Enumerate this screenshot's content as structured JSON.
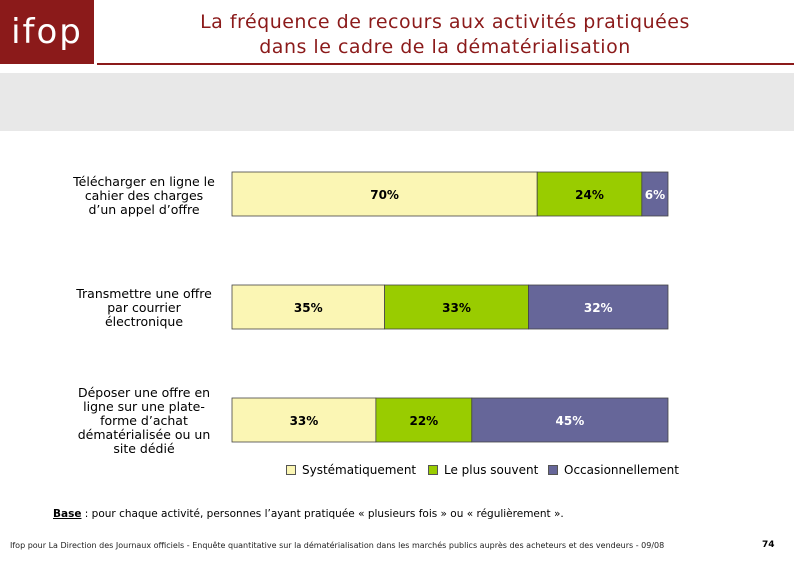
{
  "header": {
    "logo_text": "ifop",
    "title_line1": "La fréquence de recours aux activités pratiquées",
    "title_line2": "dans le cadre de la dématérialisation",
    "brand_color": "#8b1a1a"
  },
  "chart_data": {
    "type": "bar",
    "orientation": "horizontal",
    "stacked": true,
    "percent_stacked": true,
    "categories": [
      "Télécharger en ligne le cahier des charges d’un appel d’offre",
      "Transmettre une offre par courrier électronique",
      "Déposer une offre en ligne sur une plate-forme d’achat dématérialisée ou un site dédié"
    ],
    "category_lines": [
      [
        "Télécharger en ligne le",
        "cahier des charges",
        "d’un appel d’offre"
      ],
      [
        "Transmettre une offre",
        "par courrier",
        "électronique"
      ],
      [
        "Déposer une offre en",
        "ligne sur une plate-",
        "forme d’achat",
        "dématérialisée ou un",
        "site dédié"
      ]
    ],
    "series": [
      {
        "name": "Systématiquement",
        "color": "#fbf6b4",
        "values": [
          70,
          35,
          33
        ]
      },
      {
        "name": "Le plus souvent",
        "color": "#99cc00",
        "values": [
          24,
          33,
          22
        ]
      },
      {
        "name": "Occasionnellement",
        "color": "#666699",
        "values": [
          6,
          32,
          45
        ]
      }
    ],
    "data_label_suffix": "%",
    "legend_position": "bottom",
    "grid": false
  },
  "notes": {
    "base_label": "Base",
    "base_text": " : pour chaque activité, personnes l’ayant pratiquée « plusieurs fois » ou « régulièrement »."
  },
  "footer": {
    "source": "Ifop pour La Direction des Journaux officiels - Enquête quantitative sur la dématérialisation dans les marchés publics auprès des acheteurs et des vendeurs - 09/08",
    "page_number": "74"
  }
}
